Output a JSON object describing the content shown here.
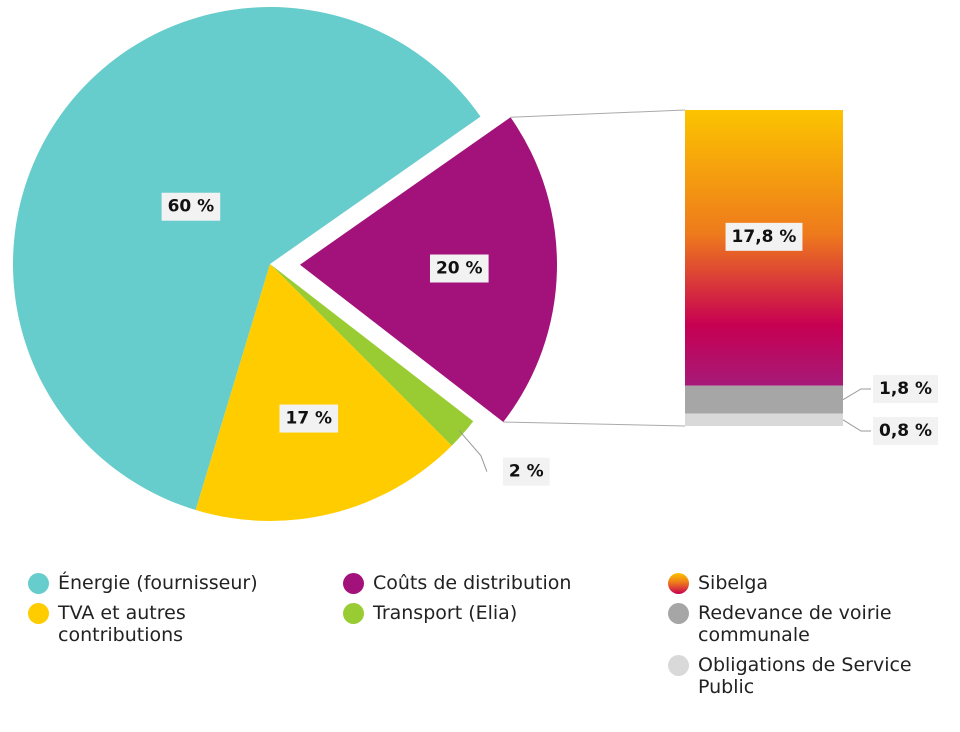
{
  "chart_data": {
    "type": "pie",
    "pie": {
      "slices": [
        {
          "name": "Énergie (fournisseur)",
          "value": 60,
          "label": "60 %",
          "color": "#66cccc"
        },
        {
          "name": "Coûts de distribution",
          "value": 20,
          "label": "20 %",
          "color": "#a2127a",
          "exploded": true
        },
        {
          "name": "Transport (Elia)",
          "value": 2,
          "label": "2 %",
          "color": "#99cc33"
        },
        {
          "name": "TVA et autres contributions",
          "value": 17,
          "label": "17 %",
          "color": "#ffcc00"
        }
      ]
    },
    "breakdown": {
      "of": "Coûts de distribution",
      "type": "stacked-bar",
      "segments": [
        {
          "name": "Sibelga",
          "value": 17.8,
          "label": "17,8 %",
          "color": "gradient:#fcc400,#ee7a1c,#c70052"
        },
        {
          "name": "Redevance de voirie communale",
          "value": 1.8,
          "label": "1,8 %",
          "color": "#a6a6a6"
        },
        {
          "name": "Obligations de Service Public",
          "value": 0.8,
          "label": "0,8 %",
          "color": "#d9d9d9"
        }
      ]
    }
  },
  "legend": {
    "col1": [
      {
        "label": "Énergie (fournisseur)",
        "color": "#66cccc"
      },
      {
        "label": "TVA et autres contributions",
        "color": "#ffcc00"
      }
    ],
    "col2": [
      {
        "label": "Coûts de distribution",
        "color": "#a2127a"
      },
      {
        "label": "Transport (Elia)",
        "color": "#99cc33"
      }
    ],
    "col3": [
      {
        "label": "Sibelga",
        "color": "gradient"
      },
      {
        "label": "Redevance de voirie communale",
        "color": "#a6a6a6"
      },
      {
        "label": "Obligations de Service Public",
        "color": "#d9d9d9"
      }
    ]
  }
}
